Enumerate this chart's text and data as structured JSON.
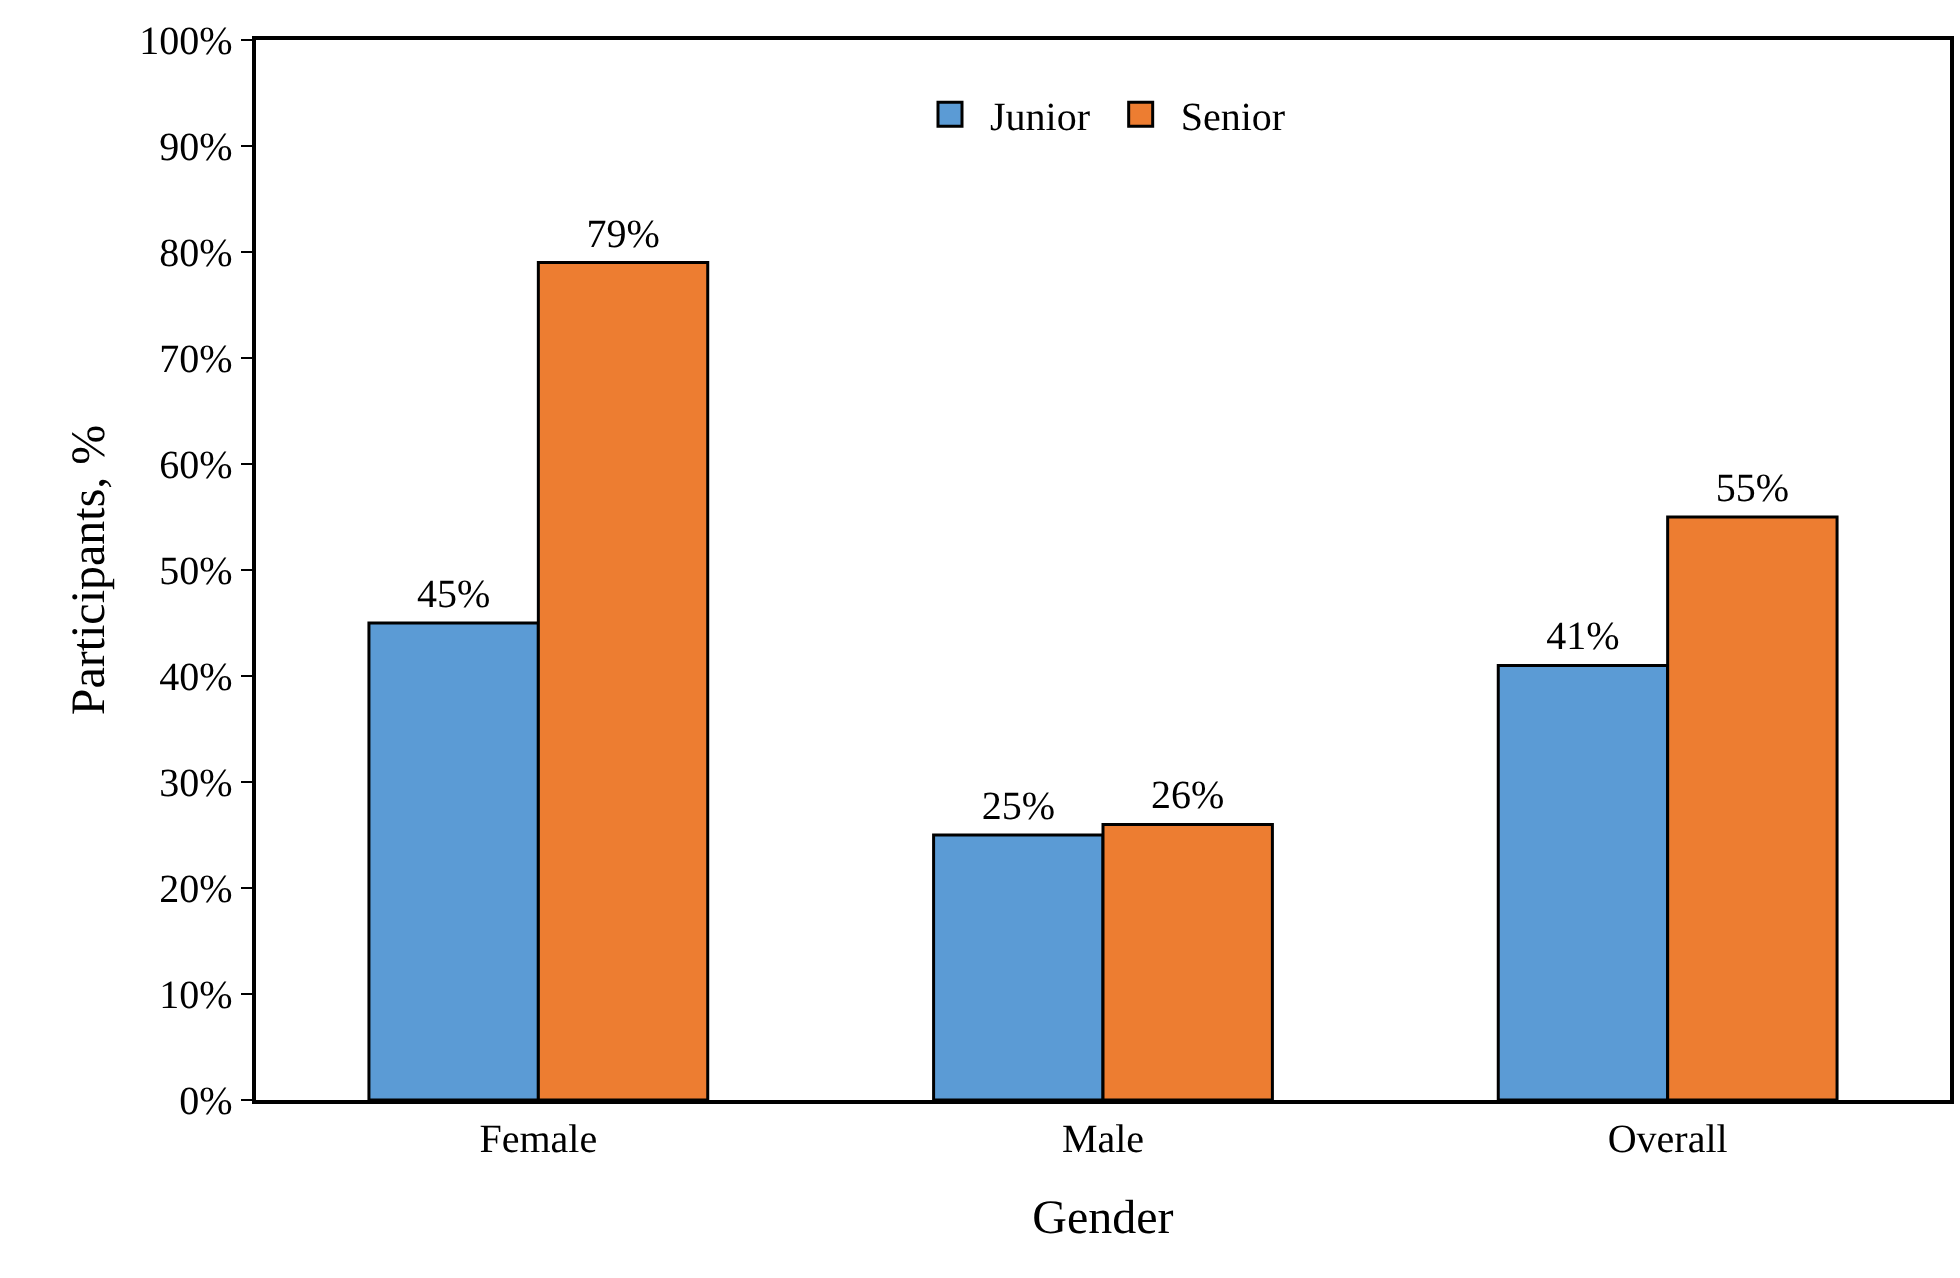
{
  "chart_data": {
    "type": "bar",
    "xlabel": "Gender",
    "ylabel": "Participants, %",
    "categories": [
      "Female",
      "Male",
      "Overall"
    ],
    "series": [
      {
        "name": "Junior",
        "color": "#5b9bd5",
        "values": [
          45,
          25,
          41
        ],
        "value_labels": [
          "45%",
          "25%",
          "41%"
        ]
      },
      {
        "name": "Senior",
        "color": "#ed7d31",
        "values": [
          79,
          26,
          55
        ],
        "value_labels": [
          "79%",
          "26%",
          "55%"
        ]
      }
    ],
    "ylim": [
      0,
      100
    ],
    "yticks": [
      {
        "value": 0,
        "label": "0%"
      },
      {
        "value": 10,
        "label": "10%"
      },
      {
        "value": 20,
        "label": "20%"
      },
      {
        "value": 30,
        "label": "30%"
      },
      {
        "value": 40,
        "label": "40%"
      },
      {
        "value": 50,
        "label": "50%"
      },
      {
        "value": 60,
        "label": "60%"
      },
      {
        "value": 70,
        "label": "70%"
      },
      {
        "value": 80,
        "label": "80%"
      },
      {
        "value": 90,
        "label": "90%"
      },
      {
        "value": 100,
        "label": "100%"
      }
    ],
    "legend": "top"
  }
}
